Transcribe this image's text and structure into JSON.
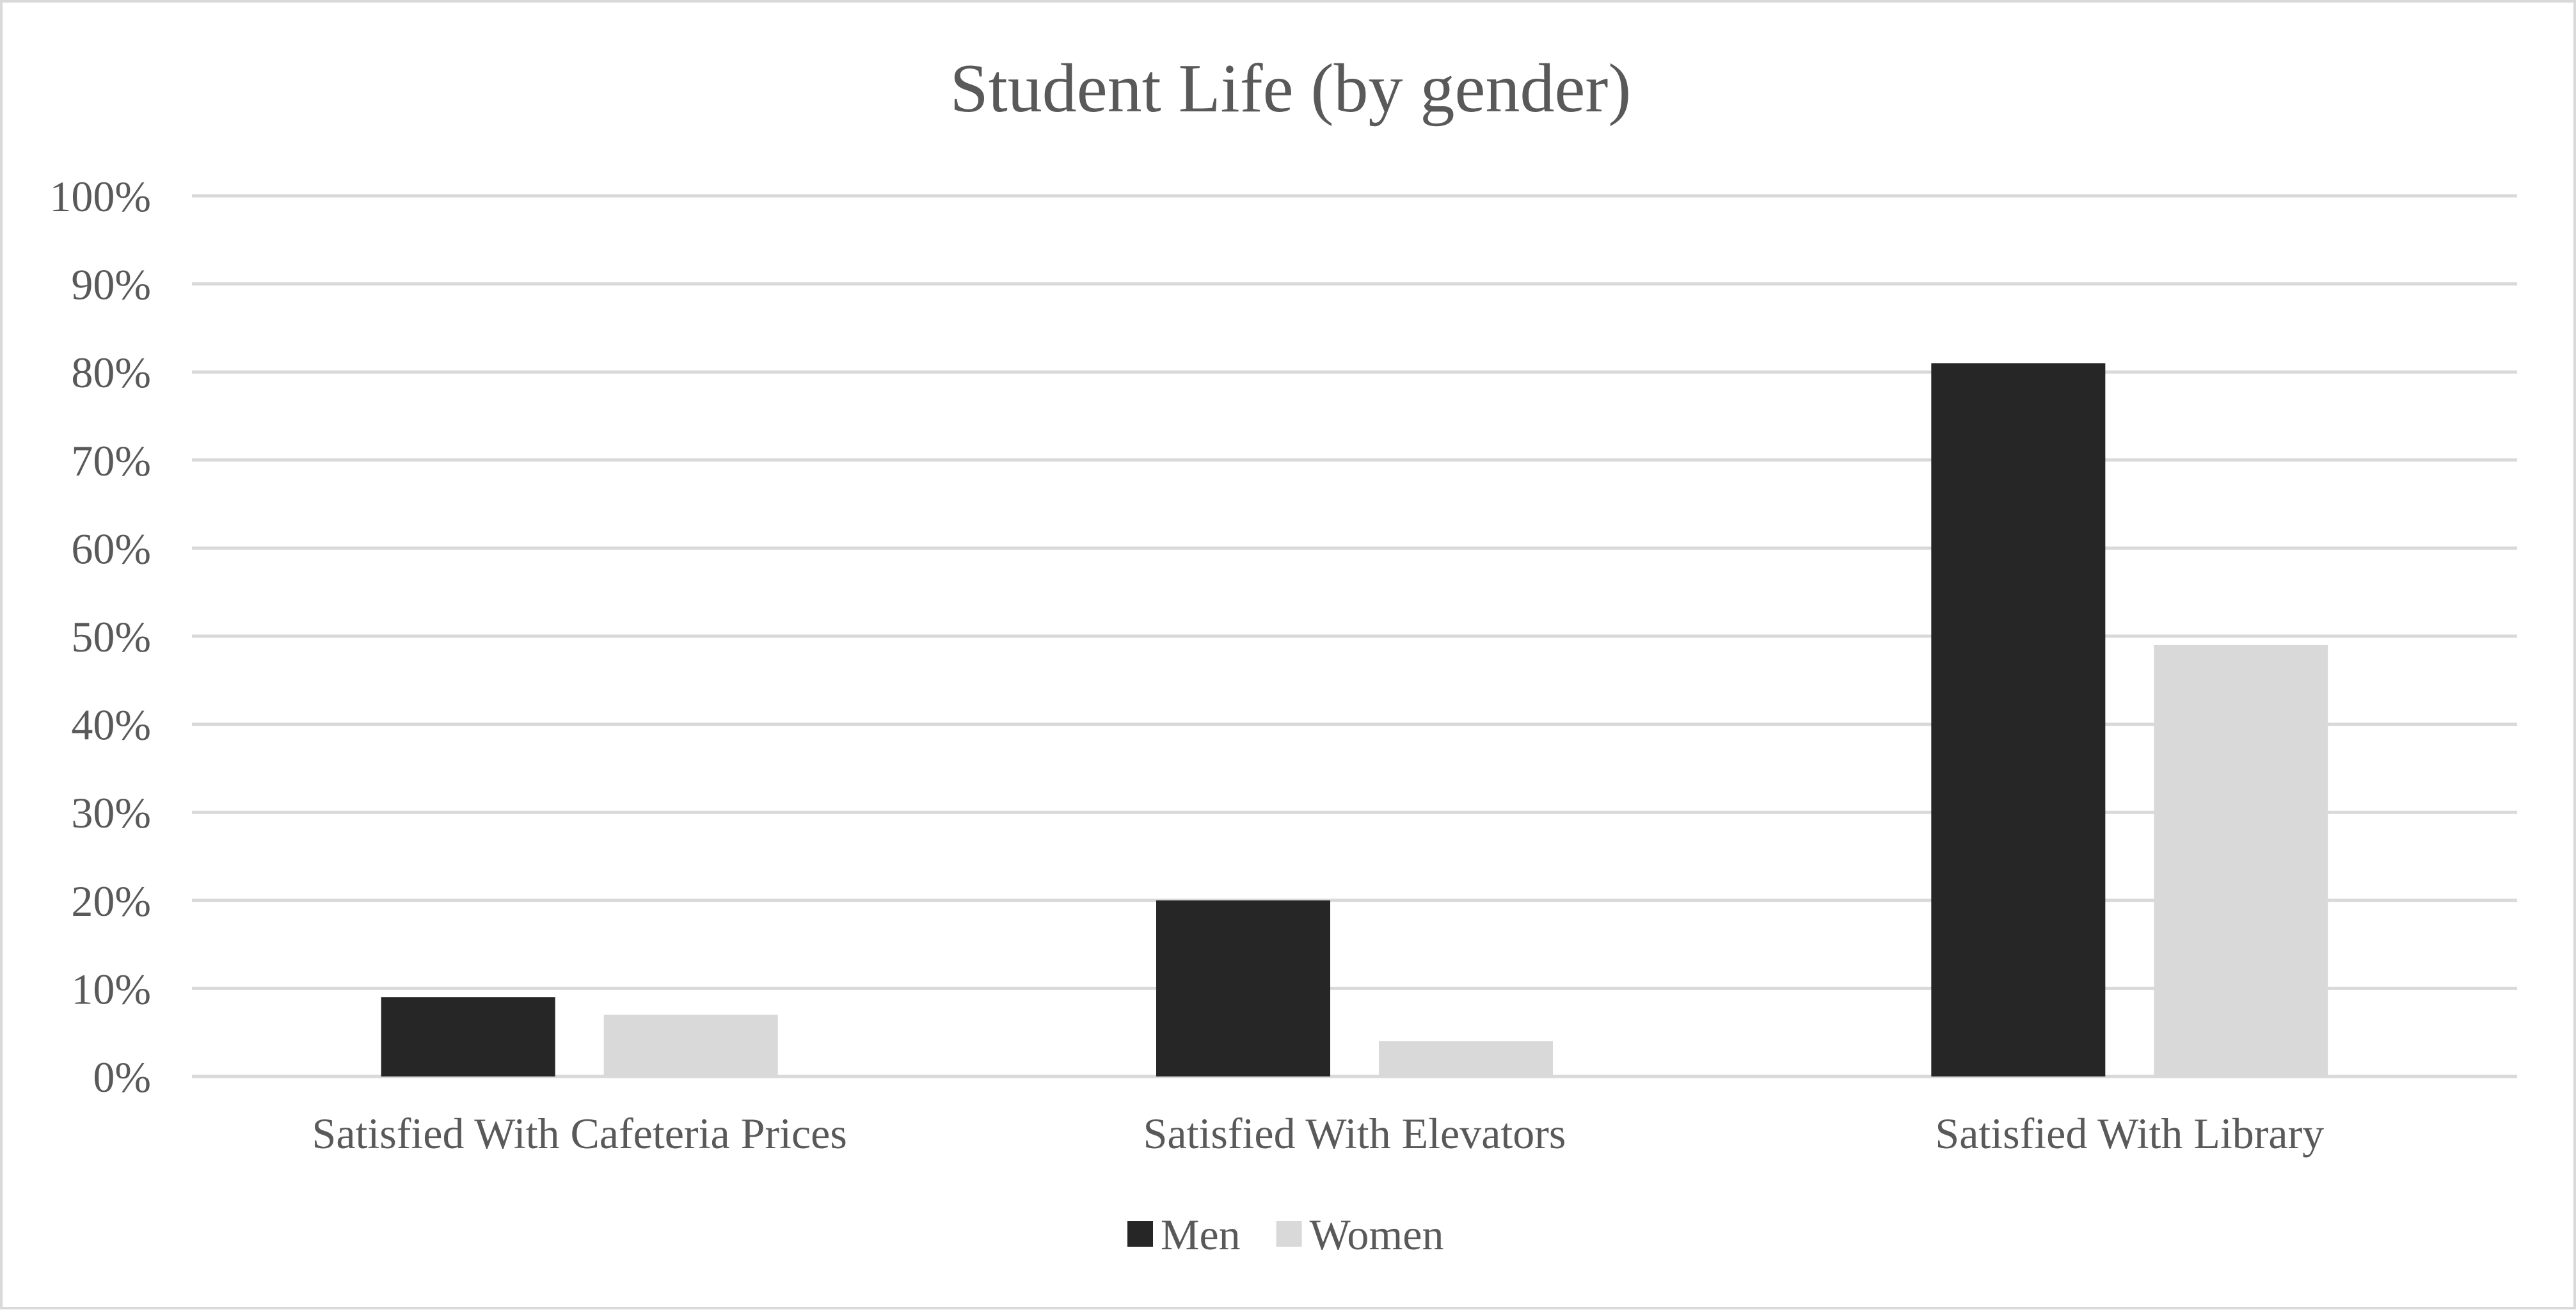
{
  "chart_data": {
    "type": "bar",
    "title": "Student Life (by gender)",
    "xlabel": "",
    "ylabel": "",
    "categories": [
      "Satisfied With Cafeteria Prices",
      "Satisfied With Elevators",
      "Satisfied With Library"
    ],
    "series": [
      {
        "name": "Men",
        "values": [
          9,
          20,
          81
        ],
        "color": "#262626"
      },
      {
        "name": "Women",
        "values": [
          7,
          4,
          49
        ],
        "color": "#d9d9d9"
      }
    ],
    "ylim": [
      0,
      100
    ],
    "yticks": [
      "0%",
      "10%",
      "20%",
      "30%",
      "40%",
      "50%",
      "60%",
      "70%",
      "80%",
      "90%",
      "100%"
    ],
    "grid": true,
    "legend_position": "bottom",
    "gridline_color": "#d9d9d9",
    "text_color": "#595959"
  }
}
